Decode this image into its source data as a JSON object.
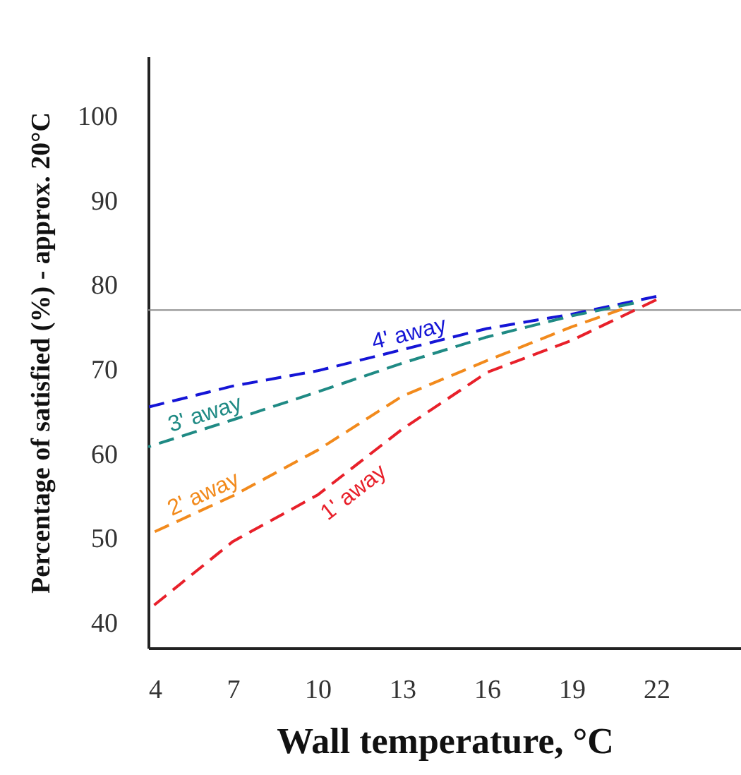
{
  "chart_data": {
    "type": "line",
    "xlabel": "Wall temperature, °C",
    "ylabel": "Percentage of satisfied (%) - approx. 20°C",
    "x": [
      4,
      7,
      10,
      13,
      16,
      19,
      22
    ],
    "series": [
      {
        "name": "4' away",
        "color": "#1515d6",
        "values": [
          65.5,
          68,
          69.8,
          72.3,
          74.8,
          76.5,
          78.6
        ]
      },
      {
        "name": "3' away",
        "color": "#1f8a84",
        "x": [
          4,
          7,
          10,
          13,
          16,
          19,
          21.2
        ],
        "values": [
          60.8,
          64,
          67.3,
          70.7,
          73.8,
          76.3,
          77.8
        ]
      },
      {
        "name": "2' away",
        "color": "#f28a1c",
        "x": [
          4,
          7,
          10,
          13,
          16,
          19,
          20.8
        ],
        "values": [
          50.4,
          55,
          60.4,
          66.8,
          71,
          75,
          77.1
        ]
      },
      {
        "name": "1' away",
        "color": "#e8202a",
        "values": [
          41.5,
          49.6,
          55.1,
          62.9,
          69.6,
          73.4,
          78.2
        ]
      }
    ],
    "xlim": [
      4,
      25
    ],
    "xticks": [
      4,
      7,
      10,
      13,
      16,
      19,
      22
    ],
    "ylim": [
      37,
      107
    ],
    "yticks": [
      40,
      50,
      60,
      70,
      80,
      90,
      100
    ],
    "ref_lines": [
      {
        "axis": "y",
        "value": 77,
        "color": "#8c8c8c"
      }
    ],
    "line_style": "dashed",
    "marker": "none",
    "grid": false
  }
}
